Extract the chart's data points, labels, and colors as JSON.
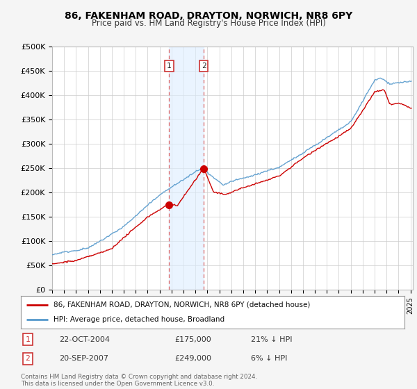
{
  "title": "86, FAKENHAM ROAD, DRAYTON, NORWICH, NR8 6PY",
  "subtitle": "Price paid vs. HM Land Registry's House Price Index (HPI)",
  "ylabel_ticks": [
    "£0",
    "£50K",
    "£100K",
    "£150K",
    "£200K",
    "£250K",
    "£300K",
    "£350K",
    "£400K",
    "£450K",
    "£500K"
  ],
  "ytick_values": [
    0,
    50000,
    100000,
    150000,
    200000,
    250000,
    300000,
    350000,
    400000,
    450000,
    500000
  ],
  "ylim": [
    0,
    500000
  ],
  "hpi_color": "#5599cc",
  "price_color": "#cc0000",
  "sale1_date": "22-OCT-2004",
  "sale1_price": 175000,
  "sale1_year": 2004.8,
  "sale1_pct": "21% ↓ HPI",
  "sale2_date": "20-SEP-2007",
  "sale2_price": 249000,
  "sale2_year": 2007.7,
  "sale2_pct": "6% ↓ HPI",
  "legend_label1": "86, FAKENHAM ROAD, DRAYTON, NORWICH, NR8 6PY (detached house)",
  "legend_label2": "HPI: Average price, detached house, Broadland",
  "footnote": "Contains HM Land Registry data © Crown copyright and database right 2024.\nThis data is licensed under the Open Government Licence v3.0.",
  "background_color": "#f5f5f5",
  "plot_bg_color": "#ffffff",
  "grid_color": "#cccccc",
  "shade_color": "#ddeeff",
  "shade_alpha": 0.6,
  "vline_color": "#dd6666",
  "vline_style": "--",
  "xlim_left": 1995,
  "xlim_right": 2025.2
}
